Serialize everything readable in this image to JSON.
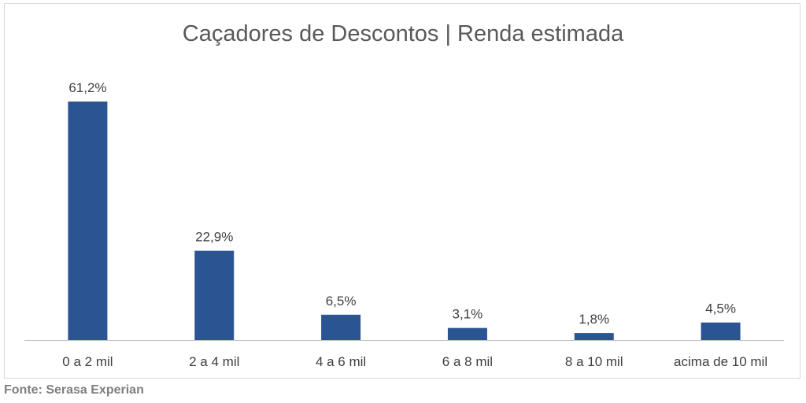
{
  "chart_data": {
    "type": "bar",
    "title": "Caçadores de Descontos | Renda estimada",
    "categories": [
      "0 a 2 mil",
      "2 a 4 mil",
      "4 a 6 mil",
      "6 a 8 mil",
      "8 a 10 mil",
      "acima de 10 mil"
    ],
    "values": [
      61.2,
      22.9,
      6.5,
      3.1,
      1.8,
      4.5
    ],
    "data_labels": [
      "61,2%",
      "22,9%",
      "6,5%",
      "3,1%",
      "1,8%",
      "4,5%"
    ],
    "ylim": [
      0,
      61.2
    ],
    "grid": false,
    "legend": "none",
    "bar_color": "#2a5592"
  },
  "footer": {
    "source": "Fonte: Serasa Experian"
  }
}
